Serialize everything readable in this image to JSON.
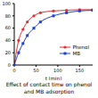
{
  "chart_data": {
    "type": "line",
    "title": "Effect of contact time on phenol and MB adsorption",
    "x_label": "t (min)",
    "x": [
      0,
      10,
      20,
      30,
      45,
      60,
      90,
      120,
      150,
      180
    ],
    "series": [
      {
        "name": "Phenol",
        "color": "#e03030",
        "marker": "circle",
        "values": [
          0,
          40,
          58,
          70,
          80,
          85,
          88,
          89,
          90,
          90
        ]
      },
      {
        "name": "MB",
        "color": "#2040d0",
        "marker": "square",
        "values": [
          0,
          20,
          35,
          48,
          60,
          70,
          80,
          85,
          88,
          89
        ]
      }
    ],
    "xlim": [
      0,
      180
    ],
    "xticks": [
      0,
      50,
      100,
      150
    ],
    "ylim": [
      0,
      100
    ],
    "yticks": [
      0,
      20,
      40,
      60,
      80,
      100
    ],
    "legend": "lower right",
    "grid": false
  }
}
